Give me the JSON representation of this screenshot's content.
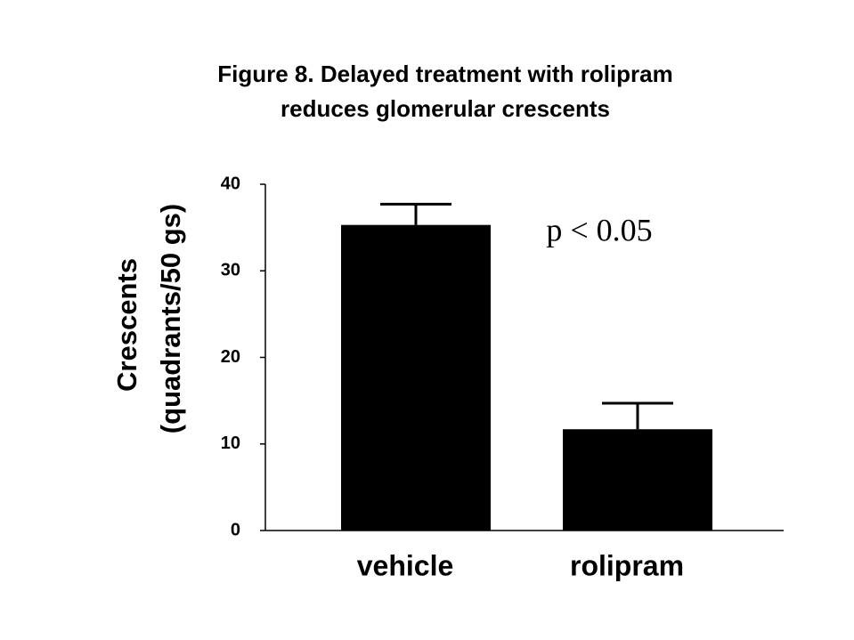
{
  "chart_data": {
    "type": "bar",
    "title": [
      "Figure 8. Delayed treatment with rolipram",
      "reduces glomerular crescents"
    ],
    "y_label": [
      "Crescents",
      "(quadrants/50 gs)"
    ],
    "annotation": "p < 0.05",
    "categories": [
      "vehicle",
      "rolipram"
    ],
    "values": [
      35.3,
      11.7
    ],
    "errors": [
      2.4,
      3.0
    ],
    "color": "#000000",
    "ylim": [
      0,
      40
    ],
    "yticks": [
      0,
      10,
      20,
      30,
      40
    ],
    "grid": false
  }
}
